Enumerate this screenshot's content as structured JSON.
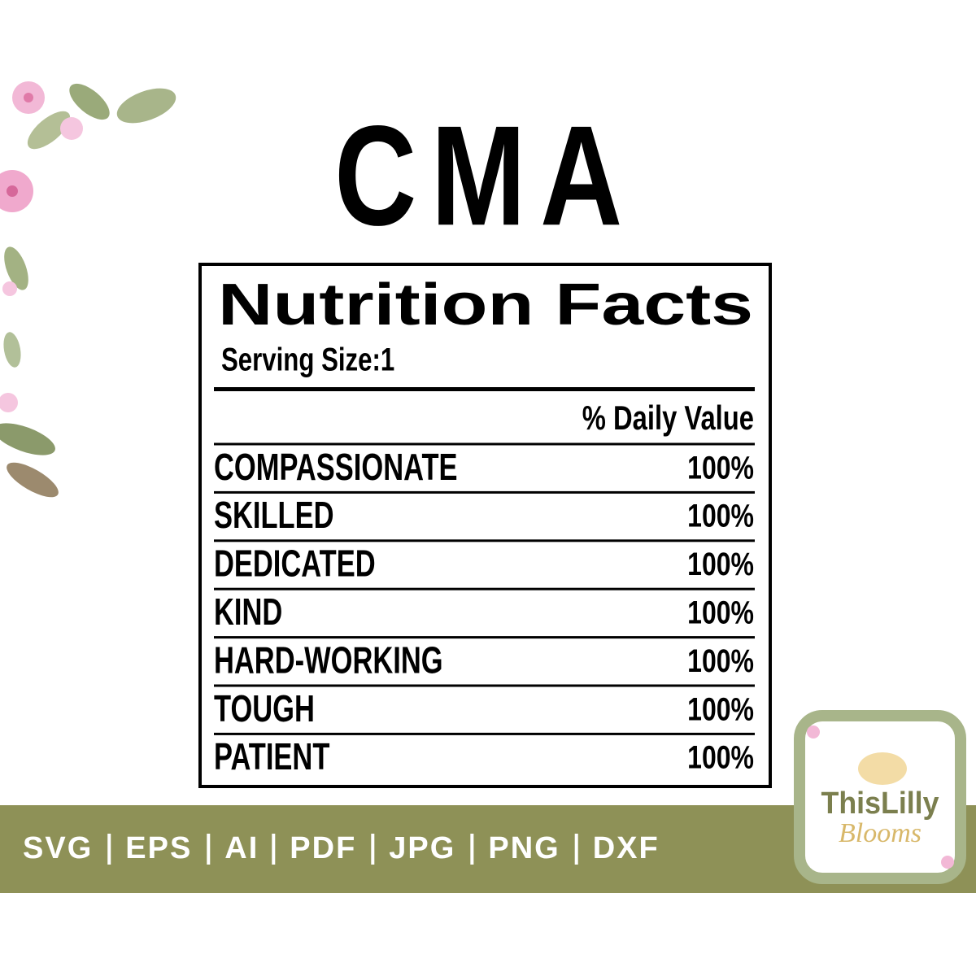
{
  "title": "CMA",
  "label": {
    "heading": "Nutrition Facts",
    "serving": "Serving Size:1",
    "column_header": "% Daily Value",
    "rows": [
      {
        "name": "COMPASSIONATE",
        "value": "100%"
      },
      {
        "name": "SKILLED",
        "value": "100%"
      },
      {
        "name": "DEDICATED",
        "value": "100%"
      },
      {
        "name": "KIND",
        "value": "100%"
      },
      {
        "name": "HARD-WORKING",
        "value": "100%"
      },
      {
        "name": "TOUGH",
        "value": "100%"
      },
      {
        "name": "PATIENT",
        "value": "100%"
      }
    ]
  },
  "banner": {
    "formats": [
      "SVG",
      "EPS",
      "AI",
      "PDF",
      "JPG",
      "PNG",
      "DXF"
    ]
  },
  "logo": {
    "line1": "ThisLilly",
    "line2": "Blooms"
  }
}
